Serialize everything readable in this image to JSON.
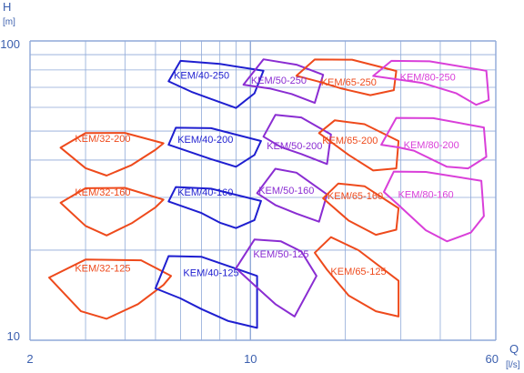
{
  "chart_data": {
    "type": "line",
    "title": "",
    "xlabel": "Q",
    "xunit": "[l/s]",
    "ylabel": "H",
    "yunit": "[m]",
    "xscale": "log",
    "yscale": "log",
    "xlim": [
      2,
      60
    ],
    "ylim": [
      10,
      100
    ],
    "grid": true,
    "x_tick_labels": [
      {
        "value": 2,
        "label": "2"
      },
      {
        "value": 10,
        "label": "10"
      },
      {
        "value": 60,
        "label": "60"
      }
    ],
    "y_tick_labels": [
      {
        "value": 10,
        "label": "10"
      },
      {
        "value": 100,
        "label": "100"
      }
    ],
    "colors": {
      "32": "#ee4a1c",
      "40": "#1f1fd0",
      "50": "#8a2dd2",
      "65": "#ee4a1c",
      "80": "#d93fd9",
      "grid": "#8fa9d8",
      "axis_text": "#3b5fae"
    },
    "series": [
      {
        "name": "KEM/32-125",
        "family": "32",
        "points": [
          [
            2.3,
            16.2
          ],
          [
            3.0,
            18.6
          ],
          [
            4.5,
            18.5
          ],
          [
            5.6,
            16.4
          ],
          [
            5.3,
            15.3
          ],
          [
            4.4,
            13.2
          ],
          [
            3.5,
            11.8
          ],
          [
            2.9,
            12.5
          ],
          [
            2.3,
            16.2
          ]
        ]
      },
      {
        "name": "KEM/32-160",
        "family": "32",
        "points": [
          [
            2.5,
            28.8
          ],
          [
            3.0,
            32.2
          ],
          [
            4.0,
            32.3
          ],
          [
            5.3,
            29.5
          ],
          [
            5.0,
            27.8
          ],
          [
            4.2,
            24.6
          ],
          [
            3.5,
            22.4
          ],
          [
            3.0,
            24.1
          ],
          [
            2.5,
            28.8
          ]
        ]
      },
      {
        "name": "KEM/32-200",
        "family": "32",
        "points": [
          [
            2.5,
            44.0
          ],
          [
            3.0,
            49.2
          ],
          [
            4.0,
            49.3
          ],
          [
            5.3,
            45.5
          ],
          [
            5.0,
            43.3
          ],
          [
            4.2,
            38.5
          ],
          [
            3.5,
            35.5
          ],
          [
            3.0,
            37.6
          ],
          [
            2.5,
            44.0
          ]
        ]
      },
      {
        "name": "KEM/40-125",
        "family": "40",
        "points": [
          [
            5.0,
            14.9
          ],
          [
            5.5,
            19.1
          ],
          [
            7.0,
            19.0
          ],
          [
            10.5,
            16.4
          ],
          [
            10.5,
            11.0
          ],
          [
            8.5,
            11.6
          ],
          [
            7.0,
            12.7
          ],
          [
            6.0,
            13.8
          ],
          [
            5.0,
            14.9
          ]
        ]
      },
      {
        "name": "KEM/40-160",
        "family": "40",
        "points": [
          [
            5.5,
            29.1
          ],
          [
            5.8,
            32.5
          ],
          [
            7.5,
            32.1
          ],
          [
            10.8,
            29.2
          ],
          [
            10.3,
            25.2
          ],
          [
            9.0,
            23.7
          ],
          [
            8.0,
            24.7
          ],
          [
            7.0,
            26.6
          ],
          [
            5.5,
            29.1
          ]
        ]
      },
      {
        "name": "KEM/40-200",
        "family": "40",
        "points": [
          [
            5.5,
            45.0
          ],
          [
            5.8,
            51.3
          ],
          [
            7.5,
            51.1
          ],
          [
            10.8,
            46.3
          ],
          [
            10.3,
            41.6
          ],
          [
            9.0,
            38.0
          ],
          [
            7.5,
            40.3
          ],
          [
            6.5,
            42.4
          ],
          [
            5.5,
            45.0
          ]
        ]
      },
      {
        "name": "KEM/40-250",
        "family": "40",
        "points": [
          [
            5.5,
            73.3
          ],
          [
            6.0,
            85.8
          ],
          [
            8.0,
            83.8
          ],
          [
            11.0,
            79.5
          ],
          [
            10.3,
            66.8
          ],
          [
            9.0,
            59.7
          ],
          [
            7.5,
            64.0
          ],
          [
            6.5,
            67.6
          ],
          [
            5.5,
            73.3
          ]
        ]
      },
      {
        "name": "KEM/50-125",
        "family": "50",
        "points": [
          [
            9.0,
            17.4
          ],
          [
            10.3,
            21.7
          ],
          [
            12.5,
            21.4
          ],
          [
            14.5,
            19.8
          ],
          [
            16.2,
            16.4
          ],
          [
            13.8,
            12.0
          ],
          [
            12.0,
            13.2
          ],
          [
            10.5,
            15.0
          ],
          [
            9.0,
            17.4
          ]
        ]
      },
      {
        "name": "KEM/50-160",
        "family": "50",
        "points": [
          [
            10.5,
            31.0
          ],
          [
            12.0,
            37.4
          ],
          [
            14.0,
            36.3
          ],
          [
            17.5,
            30.7
          ],
          [
            16.5,
            24.9
          ],
          [
            14.0,
            26.5
          ],
          [
            12.0,
            28.3
          ],
          [
            10.5,
            31.0
          ]
        ]
      },
      {
        "name": "KEM/50-200",
        "family": "50",
        "points": [
          [
            11.0,
            47.9
          ],
          [
            12.0,
            56.6
          ],
          [
            14.5,
            55.5
          ],
          [
            18.0,
            48.7
          ],
          [
            17.5,
            38.8
          ],
          [
            14.5,
            41.9
          ],
          [
            12.5,
            44.2
          ],
          [
            11.0,
            47.9
          ]
        ]
      },
      {
        "name": "KEM/50-250",
        "family": "50",
        "points": [
          [
            9.5,
            71.4
          ],
          [
            11.0,
            86.8
          ],
          [
            14.0,
            83.3
          ],
          [
            17.0,
            77.1
          ],
          [
            16.0,
            62.1
          ],
          [
            13.5,
            66.5
          ],
          [
            11.5,
            69.4
          ],
          [
            9.5,
            71.4
          ]
        ]
      },
      {
        "name": "KEM/65-125",
        "family": "65",
        "points": [
          [
            16.0,
            19.6
          ],
          [
            18.0,
            22.1
          ],
          [
            22.0,
            20.0
          ],
          [
            29.5,
            15.8
          ],
          [
            29.5,
            12.0
          ],
          [
            25.0,
            12.5
          ],
          [
            20.5,
            14.1
          ],
          [
            17.5,
            17.2
          ],
          [
            16.0,
            19.6
          ]
        ]
      },
      {
        "name": "KEM/65-160",
        "family": "65",
        "points": [
          [
            17.0,
            29.8
          ],
          [
            19.0,
            33.4
          ],
          [
            23.0,
            32.7
          ],
          [
            29.5,
            27.6
          ],
          [
            29.0,
            23.4
          ],
          [
            25.0,
            22.5
          ],
          [
            20.5,
            25.1
          ],
          [
            17.0,
            29.8
          ]
        ]
      },
      {
        "name": "KEM/65-200",
        "family": "65",
        "points": [
          [
            16.5,
            49.2
          ],
          [
            18.5,
            54.3
          ],
          [
            23.0,
            52.7
          ],
          [
            29.5,
            46.3
          ],
          [
            29.0,
            37.5
          ],
          [
            24.5,
            36.9
          ],
          [
            20.5,
            41.6
          ],
          [
            16.5,
            49.2
          ]
        ]
      },
      {
        "name": "KEM/65-250",
        "family": "65",
        "points": [
          [
            14.0,
            76.5
          ],
          [
            16.0,
            86.7
          ],
          [
            21.0,
            86.6
          ],
          [
            29.0,
            79.4
          ],
          [
            28.5,
            68.5
          ],
          [
            24.0,
            65.9
          ],
          [
            19.5,
            69.3
          ],
          [
            16.5,
            73.1
          ],
          [
            14.0,
            76.5
          ]
        ]
      },
      {
        "name": "KEM/80-160",
        "family": "80",
        "points": [
          [
            26.5,
            31.3
          ],
          [
            28.5,
            36.6
          ],
          [
            36.0,
            36.5
          ],
          [
            54.0,
            34.1
          ],
          [
            55.0,
            26.0
          ],
          [
            50.0,
            22.9
          ],
          [
            42.0,
            21.4
          ],
          [
            36.0,
            23.3
          ],
          [
            29.5,
            28.3
          ],
          [
            26.5,
            31.3
          ]
        ]
      },
      {
        "name": "KEM/80-200",
        "family": "80",
        "points": [
          [
            26.0,
            45.0
          ],
          [
            29.0,
            55.3
          ],
          [
            38.0,
            55.2
          ],
          [
            55.0,
            51.4
          ],
          [
            56.0,
            41.0
          ],
          [
            49.0,
            37.5
          ],
          [
            42.0,
            38.0
          ],
          [
            33.0,
            43.0
          ],
          [
            29.5,
            44.1
          ],
          [
            26.0,
            45.0
          ]
        ]
      },
      {
        "name": "KEM/80-250",
        "family": "80",
        "points": [
          [
            24.5,
            76.4
          ],
          [
            28.0,
            85.8
          ],
          [
            37.0,
            85.5
          ],
          [
            56.0,
            79.5
          ],
          [
            57.0,
            63.5
          ],
          [
            52.0,
            61.2
          ],
          [
            45.0,
            66.8
          ],
          [
            35.0,
            72.4
          ],
          [
            24.5,
            76.4
          ]
        ]
      }
    ],
    "labels": [
      {
        "text": "KEM/32-125",
        "x": 3.4,
        "y": 17.3,
        "family": "32"
      },
      {
        "text": "KEM/32-160",
        "x": 3.4,
        "y": 31.0,
        "family": "32"
      },
      {
        "text": "KEM/32-200",
        "x": 3.4,
        "y": 47.0,
        "family": "32"
      },
      {
        "text": "KEM/40-125",
        "x": 7.5,
        "y": 16.7,
        "family": "40"
      },
      {
        "text": "KEM/40-160",
        "x": 7.2,
        "y": 31.0,
        "family": "40"
      },
      {
        "text": "KEM/40-200",
        "x": 7.2,
        "y": 46.6,
        "family": "40"
      },
      {
        "text": "KEM/40-250",
        "x": 7.0,
        "y": 76.3,
        "family": "40"
      },
      {
        "text": "KEM/50-125",
        "x": 12.5,
        "y": 19.3,
        "family": "50"
      },
      {
        "text": "KEM/50-160",
        "x": 13.0,
        "y": 31.5,
        "family": "50"
      },
      {
        "text": "KEM/50-200",
        "x": 13.8,
        "y": 44.3,
        "family": "50"
      },
      {
        "text": "KEM/50-250",
        "x": 12.3,
        "y": 73.5,
        "family": "50"
      },
      {
        "text": "KEM/65-125",
        "x": 22.0,
        "y": 16.9,
        "family": "65"
      },
      {
        "text": "KEM/65-160",
        "x": 21.5,
        "y": 30.2,
        "family": "65"
      },
      {
        "text": "KEM/65-200",
        "x": 20.7,
        "y": 46.3,
        "family": "65"
      },
      {
        "text": "KEM/65-250",
        "x": 20.5,
        "y": 72.4,
        "family": "65"
      },
      {
        "text": "KEM/80-160",
        "x": 36.0,
        "y": 30.5,
        "family": "80"
      },
      {
        "text": "KEM/80-200",
        "x": 37.5,
        "y": 44.7,
        "family": "80"
      },
      {
        "text": "KEM/80-250",
        "x": 36.5,
        "y": 75.2,
        "family": "80"
      }
    ]
  }
}
